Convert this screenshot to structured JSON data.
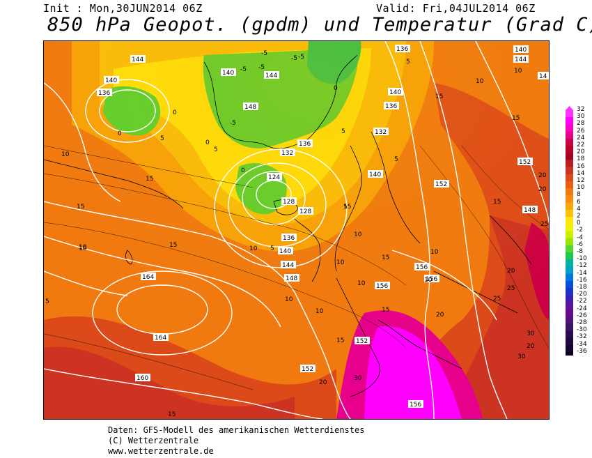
{
  "header": {
    "init": "Init : Mon,30JUN2014 06Z",
    "valid": "Valid: Fri,04JUL2014 06Z",
    "title": "850 hPa Geopot. (gpdm) und Temperatur (Grad C)"
  },
  "legend": {
    "labels": [
      "32",
      "30",
      "28",
      "26",
      "24",
      "22",
      "20",
      "18",
      "16",
      "14",
      "12",
      "10",
      "8",
      "6",
      "4",
      "2",
      "0",
      "-2",
      "-4",
      "-6",
      "-8",
      "-10",
      "-12",
      "-14",
      "-16",
      "-18",
      "-20",
      "-22",
      "-24",
      "-26",
      "-28",
      "-30",
      "-32",
      "-34",
      "-36"
    ],
    "colors": [
      "#ff33ff",
      "#ff00ff",
      "#ff00cc",
      "#e6008c",
      "#cc0044",
      "#b8002a",
      "#a50020",
      "#b81e1e",
      "#cc3322",
      "#dd4a1a",
      "#e85e12",
      "#f07a10",
      "#f58c0c",
      "#f8a40a",
      "#fbc20a",
      "#ffe60a",
      "#f0f000",
      "#c8f000",
      "#99e600",
      "#55d630",
      "#1ec850",
      "#00b4a0",
      "#00a0c8",
      "#0078dc",
      "#0050dc",
      "#1e32c8",
      "#3c1eb4",
      "#5a14a0",
      "#640a8c",
      "#501478",
      "#3c1464",
      "#2d0a50",
      "#1e0a3c",
      "#14052d",
      "#0a001e"
    ]
  },
  "map": {
    "geopotential_labels": [
      "144",
      "140",
      "136",
      "148",
      "144",
      "140",
      "136",
      "132",
      "124",
      "128",
      "128",
      "136",
      "140",
      "144",
      "148",
      "136",
      "140",
      "136",
      "132",
      "140",
      "152",
      "148",
      "152",
      "156",
      "156",
      "156",
      "164",
      "164",
      "160",
      "152",
      "152",
      "156",
      "144",
      "140",
      "14"
    ],
    "temperature_labels": [
      "-5",
      "-5",
      "-5",
      "-5",
      "-5",
      "-5",
      "0",
      "0",
      "0",
      "0",
      "0",
      "5",
      "5",
      "5",
      "5",
      "5",
      "5",
      "5",
      "10",
      "10",
      "10",
      "10",
      "10",
      "10",
      "10",
      "10",
      "10",
      "10",
      "10",
      "10",
      "15",
      "15",
      "15",
      "15",
      "15",
      "15",
      "15",
      "15",
      "15",
      "15",
      "15",
      "20",
      "20",
      "20",
      "20",
      "20",
      "20",
      "25",
      "25",
      "25",
      "30",
      "30",
      "30",
      "5",
      "10"
    ]
  },
  "footer": {
    "line1": "Daten: GFS-Modell des amerikanischen Wetterdienstes",
    "line2": "(C) Wetterzentrale",
    "line3": "www.wetterzentrale.de"
  }
}
